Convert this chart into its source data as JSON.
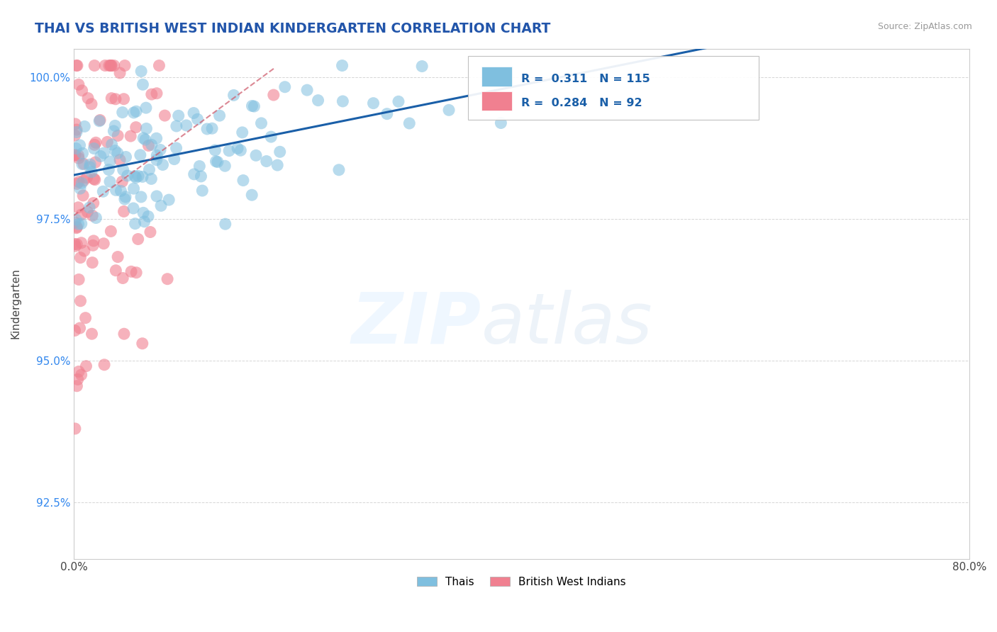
{
  "title": "THAI VS BRITISH WEST INDIAN KINDERGARTEN CORRELATION CHART",
  "source": "Source: ZipAtlas.com",
  "ylabel_label": "Kindergarten",
  "x_min": 0.0,
  "x_max": 0.8,
  "y_min": 0.915,
  "y_max": 1.005,
  "y_ticks": [
    0.925,
    0.95,
    0.975,
    1.0
  ],
  "y_tick_labels": [
    "92.5%",
    "95.0%",
    "97.5%",
    "100.0%"
  ],
  "x_tick_labels": [
    "0.0%",
    "80.0%"
  ],
  "thai_color": "#7fbfdf",
  "bwi_color": "#f08090",
  "trendline_color": "#1a5fa8",
  "bwi_trendline_color": "#d06070",
  "R_thai": 0.311,
  "N_thai": 115,
  "R_bwi": 0.284,
  "N_bwi": 92,
  "legend_label_thai": "Thais",
  "legend_label_bwi": "British West Indians"
}
